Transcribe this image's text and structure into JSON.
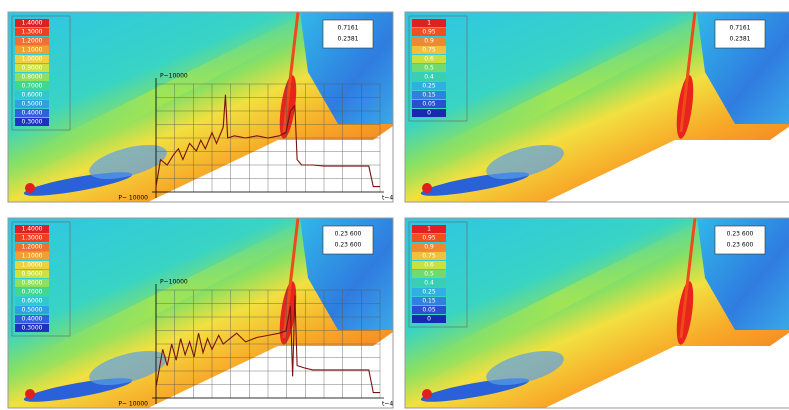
{
  "panels": [
    {
      "legend": [
        "1.4000",
        "1.3000",
        "1.2000",
        "1.1000",
        "1.0000",
        "0.9000",
        "0.8000",
        "0.7000",
        "0.6000",
        "0.5000",
        "0.4000",
        "0.3000"
      ],
      "info": [
        "0.7161",
        "0.2381"
      ],
      "plot": {
        "y_label": "P~10000",
        "x_origin_label": "P~ 10000",
        "x_label": "t~4",
        "xlim": [
          0,
          100
        ],
        "ylim": [
          0,
          100
        ],
        "x": [
          0,
          2,
          5,
          8,
          10,
          12,
          15,
          18,
          20,
          22,
          25,
          27,
          30,
          31,
          32,
          35,
          40,
          45,
          50,
          55,
          58,
          60,
          62,
          63,
          65,
          70,
          75,
          85,
          95,
          97,
          100
        ],
        "values": [
          5,
          30,
          25,
          35,
          40,
          30,
          45,
          38,
          48,
          40,
          55,
          45,
          60,
          90,
          50,
          52,
          50,
          52,
          50,
          52,
          55,
          75,
          80,
          30,
          25,
          25,
          24,
          24,
          24,
          5,
          5
        ]
      }
    },
    {
      "legend": [
        "1",
        "0.95",
        "0.9",
        "0.75",
        "0.6",
        "0.5",
        "0.4",
        "0.25",
        "0.15",
        "0.05",
        "0"
      ],
      "info": [
        "0.7161",
        "0.2381"
      ]
    },
    {
      "legend": [
        "1.4000",
        "1.3000",
        "1.2000",
        "1.1000",
        "1.0000",
        "0.9000",
        "0.8000",
        "0.7000",
        "0.6000",
        "0.5000",
        "0.4000",
        "0.3000"
      ],
      "info": [
        "0.23 600",
        "0.23 600"
      ],
      "plot": {
        "y_label": "P~10000",
        "x_origin_label": "P~ 10000",
        "x_label": "t~4",
        "xlim": [
          0,
          100
        ],
        "ylim": [
          0,
          100
        ],
        "x": [
          0,
          3,
          5,
          7,
          9,
          11,
          13,
          15,
          17,
          19,
          21,
          23,
          25,
          28,
          30,
          33,
          36,
          40,
          45,
          50,
          55,
          58,
          60,
          61,
          62,
          63,
          66,
          70,
          80,
          95,
          97,
          100
        ],
        "values": [
          10,
          45,
          30,
          50,
          35,
          55,
          40,
          52,
          38,
          60,
          42,
          55,
          45,
          58,
          50,
          55,
          60,
          52,
          56,
          58,
          60,
          62,
          85,
          20,
          95,
          30,
          28,
          26,
          26,
          26,
          5,
          5
        ]
      }
    },
    {
      "legend": [
        "1",
        "0.95",
        "0.9",
        "0.75",
        "0.6",
        "0.5",
        "0.4",
        "0.25",
        "0.15",
        "0.05",
        "0"
      ],
      "info": [
        "0.23 600",
        "0.23 600"
      ]
    }
  ]
}
